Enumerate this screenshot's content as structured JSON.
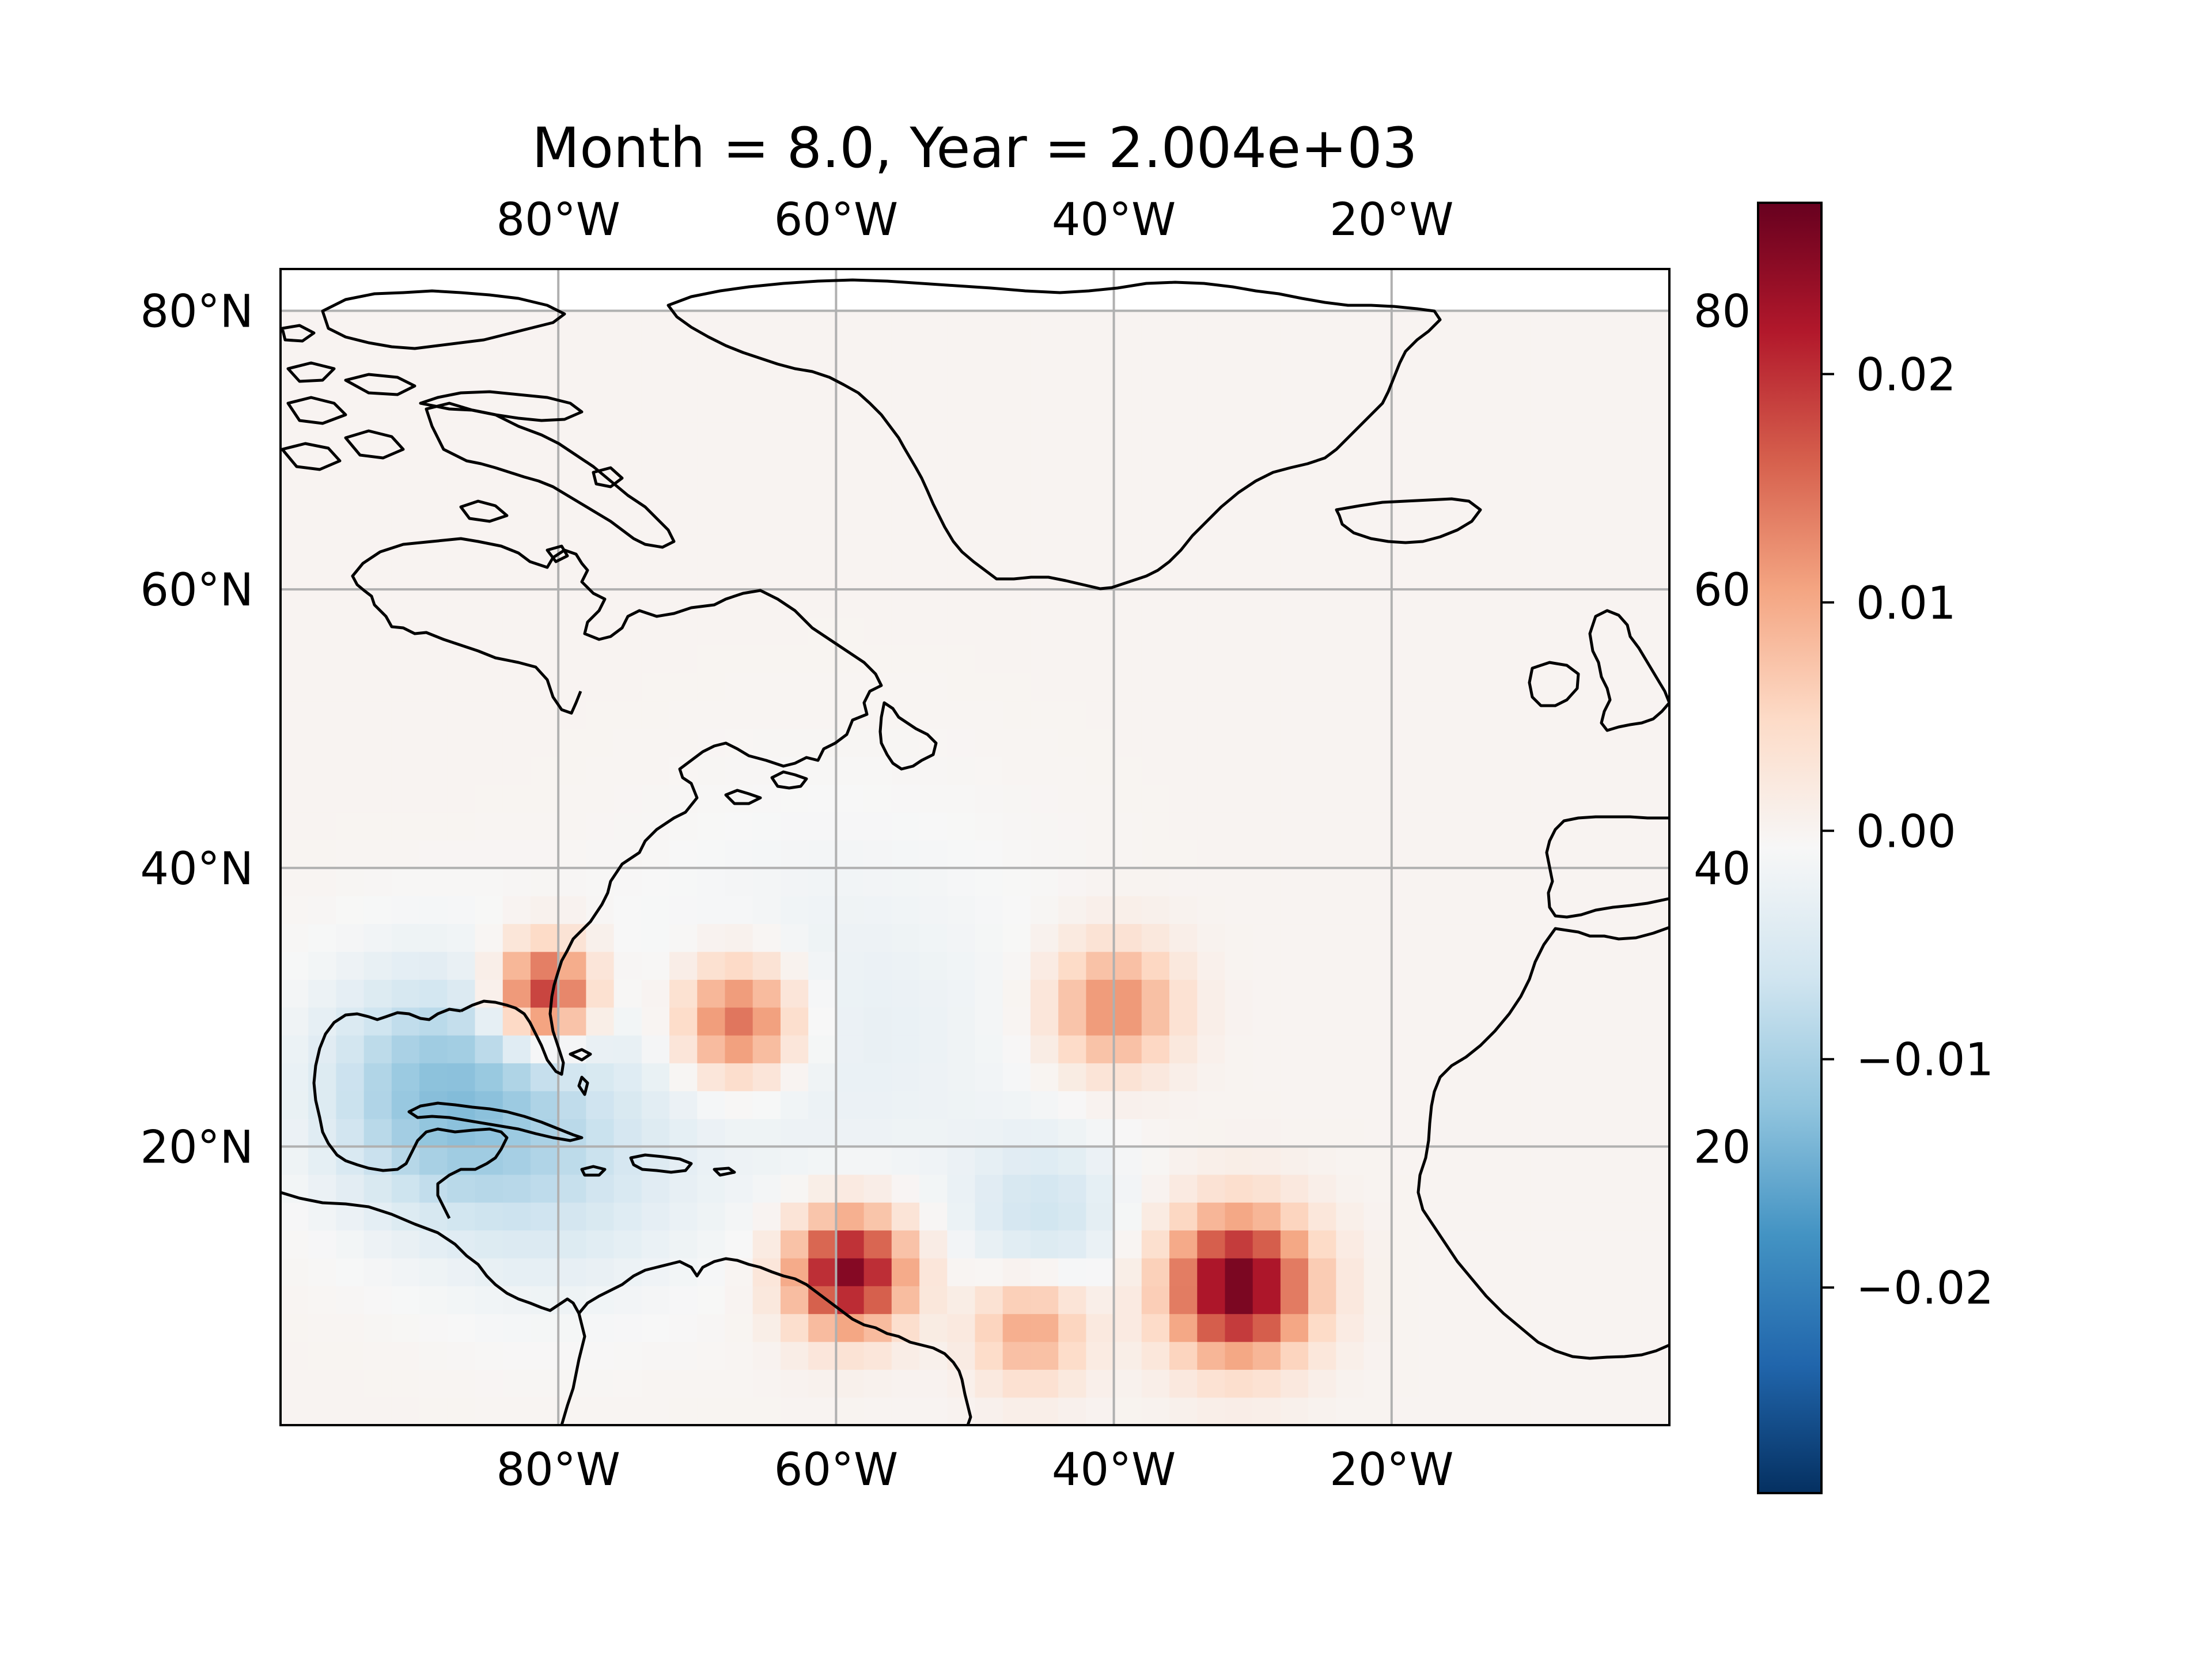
{
  "title": "Month = 8.0, Year = 2.004e+03",
  "map": {
    "lon_range": [
      -100,
      0
    ],
    "lat_range": [
      0,
      83
    ],
    "lon_ticks": [
      {
        "value": -80,
        "label": "80°W"
      },
      {
        "value": -60,
        "label": "60°W"
      },
      {
        "value": -40,
        "label": "40°W"
      },
      {
        "value": -20,
        "label": "20°W"
      }
    ],
    "lat_ticks": [
      {
        "value": 80,
        "label": "80°N",
        "right_label": "80"
      },
      {
        "value": 60,
        "label": "60°N",
        "right_label": "60"
      },
      {
        "value": 40,
        "label": "40°N",
        "right_label": "40"
      },
      {
        "value": 20,
        "label": "20°N",
        "right_label": "20"
      }
    ],
    "gridlines": true,
    "coastlines": true,
    "colormap": "RdBu_r"
  },
  "field": {
    "background_value": 0.0,
    "anomalies": [
      {
        "lon": -81,
        "lat": 31,
        "amp": 0.022,
        "sigma": 2.5
      },
      {
        "lon": -67,
        "lat": 29,
        "amp": 0.017,
        "sigma": 3.0
      },
      {
        "lon": -40,
        "lat": 30,
        "amp": 0.013,
        "sigma": 3.2
      },
      {
        "lon": -59,
        "lat": 11,
        "amp": 0.026,
        "sigma": 3.0
      },
      {
        "lon": -31,
        "lat": 10,
        "amp": 0.027,
        "sigma": 3.6
      },
      {
        "lon": -46,
        "lat": 7,
        "amp": 0.011,
        "sigma": 2.8
      },
      {
        "lon": -89,
        "lat": 24,
        "amp": -0.011,
        "sigma": 6.0
      },
      {
        "lon": -80,
        "lat": 19,
        "amp": -0.006,
        "sigma": 6.5
      },
      {
        "lon": -45,
        "lat": 15,
        "amp": -0.006,
        "sigma": 4.0
      },
      {
        "lon": -60,
        "lat": 28,
        "amp": -0.003,
        "sigma": 10.0
      }
    ]
  },
  "colorbar": {
    "vmin": -0.029,
    "vmax": 0.0275,
    "ticks": [
      {
        "value": 0.02,
        "label": "0.02"
      },
      {
        "value": 0.01,
        "label": "0.01"
      },
      {
        "value": 0.0,
        "label": "0.00"
      },
      {
        "value": -0.01,
        "label": "−0.01"
      },
      {
        "value": -0.02,
        "label": "−0.02"
      }
    ],
    "colors": [
      "#053061",
      "#2166ac",
      "#4393c3",
      "#92c5de",
      "#d1e5f0",
      "#f7f7f7",
      "#fddbc7",
      "#f4a582",
      "#d6604d",
      "#b2182b",
      "#67001f"
    ]
  }
}
